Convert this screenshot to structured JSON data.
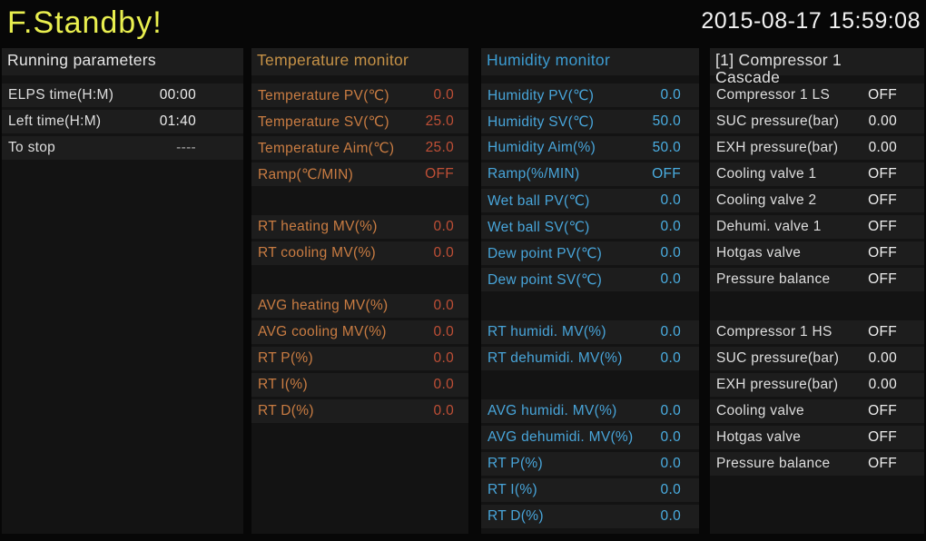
{
  "header": {
    "title": "F.Standby!",
    "title_color": "#e9ef4f",
    "datetime": "2015-08-17 15:59:08",
    "datetime_color": "#f2f2f2"
  },
  "panels": [
    {
      "title": "Running parameters",
      "colors": {
        "header": "#e6e6e6",
        "label": "#dedede",
        "value": "#ededed"
      },
      "rows": [
        {
          "slot": 0,
          "label": "ELPS time(H:M)",
          "value": "00:00"
        },
        {
          "slot": 1,
          "label": "Left time(H:M)",
          "value": "01:40"
        },
        {
          "slot": 2,
          "label": "To stop",
          "value": "----",
          "value_color": "#a8a8a8"
        }
      ]
    },
    {
      "title": "Temperature monitor",
      "colors": {
        "header": "#c69247",
        "label": "#c97c42",
        "value": "#bf4f36"
      },
      "rows": [
        {
          "slot": 0,
          "label": "Temperature PV(℃)",
          "value": "0.0"
        },
        {
          "slot": 1,
          "label": "Temperature SV(℃)",
          "value": "25.0"
        },
        {
          "slot": 2,
          "label": "Temperature Aim(℃)",
          "value": "25.0"
        },
        {
          "slot": 3,
          "label": "Ramp(℃/MIN)",
          "value": "OFF"
        },
        {
          "slot": 5,
          "label": "RT heating MV(%)",
          "value": "0.0"
        },
        {
          "slot": 6,
          "label": "RT cooling MV(%)",
          "value": "0.0"
        },
        {
          "slot": 8,
          "label": "AVG heating MV(%)",
          "value": "0.0"
        },
        {
          "slot": 9,
          "label": "AVG cooling MV(%)",
          "value": "0.0"
        },
        {
          "slot": 10,
          "label": "RT P(%)",
          "value": "0.0"
        },
        {
          "slot": 11,
          "label": "RT I(%)",
          "value": "0.0"
        },
        {
          "slot": 12,
          "label": "RT D(%)",
          "value": "0.0"
        }
      ]
    },
    {
      "title": "Humidity monitor",
      "colors": {
        "header": "#3c9cd2",
        "label": "#48a5da",
        "value": "#4aaee2"
      },
      "rows": [
        {
          "slot": 0,
          "label": "Humidity PV(℃)",
          "value": "0.0"
        },
        {
          "slot": 1,
          "label": "Humidity SV(℃)",
          "value": "50.0"
        },
        {
          "slot": 2,
          "label": "Humidity Aim(%)",
          "value": "50.0"
        },
        {
          "slot": 3,
          "label": "Ramp(%/MIN)",
          "value": "OFF"
        },
        {
          "slot": 4,
          "label": "Wet ball PV(℃)",
          "value": "0.0"
        },
        {
          "slot": 5,
          "label": "Wet ball SV(℃)",
          "value": "0.0"
        },
        {
          "slot": 6,
          "label": "Dew point PV(℃)",
          "value": "0.0"
        },
        {
          "slot": 7,
          "label": "Dew point SV(℃)",
          "value": "0.0"
        },
        {
          "slot": 9,
          "label": "RT humidi. MV(%)",
          "value": "0.0"
        },
        {
          "slot": 10,
          "label": "RT dehumidi. MV(%)",
          "value": "0.0"
        },
        {
          "slot": 12,
          "label": "AVG humidi. MV(%)",
          "value": "0.0"
        },
        {
          "slot": 13,
          "label": "AVG dehumidi. MV(%)",
          "value": "0.0"
        },
        {
          "slot": 14,
          "label": "RT P(%)",
          "value": "0.0"
        },
        {
          "slot": 15,
          "label": "RT I(%)",
          "value": "0.0"
        },
        {
          "slot": 16,
          "label": "RT D(%)",
          "value": "0.0"
        }
      ]
    },
    {
      "title": "[1] Compressor 1\nCascade",
      "colors": {
        "header": "#e0e0e0",
        "label": "#dedede",
        "value": "#ededed"
      },
      "rows": [
        {
          "slot": 0,
          "label": "Compressor 1 LS",
          "value": "OFF"
        },
        {
          "slot": 1,
          "label": "SUC pressure(bar)",
          "value": "0.00"
        },
        {
          "slot": 2,
          "label": "EXH pressure(bar)",
          "value": "0.00"
        },
        {
          "slot": 3,
          "label": "Cooling valve 1",
          "value": "OFF"
        },
        {
          "slot": 4,
          "label": "Cooling valve 2",
          "value": "OFF"
        },
        {
          "slot": 5,
          "label": "Dehumi. valve 1",
          "value": "OFF"
        },
        {
          "slot": 6,
          "label": "Hotgas valve",
          "value": "OFF"
        },
        {
          "slot": 7,
          "label": "Pressure balance",
          "value": "OFF"
        },
        {
          "slot": 9,
          "label": "Compressor 1 HS",
          "value": "OFF"
        },
        {
          "slot": 10,
          "label": "SUC pressure(bar)",
          "value": "0.00"
        },
        {
          "slot": 11,
          "label": "EXH pressure(bar)",
          "value": "0.00"
        },
        {
          "slot": 12,
          "label": "Cooling valve",
          "value": "OFF"
        },
        {
          "slot": 13,
          "label": "Hotgas valve",
          "value": "OFF"
        },
        {
          "slot": 14,
          "label": "Pressure balance",
          "value": "OFF"
        }
      ]
    }
  ]
}
